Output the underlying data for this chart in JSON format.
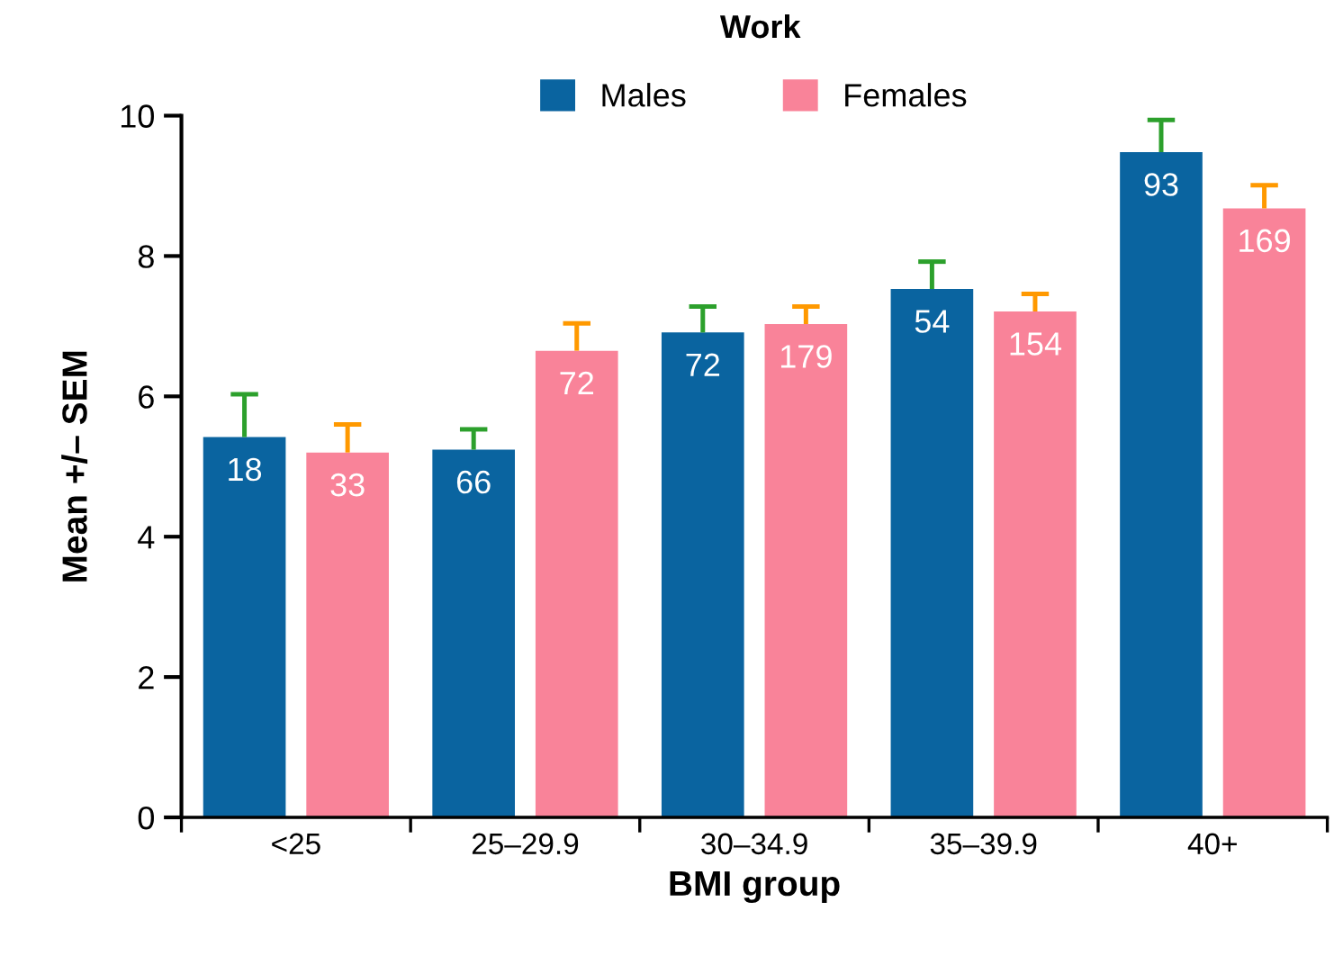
{
  "chart_data": {
    "type": "bar",
    "title": "Work",
    "xlabel": "BMI group",
    "ylabel": "Mean +/– SEM",
    "categories": [
      "<25",
      "25–29.9",
      "30–34.9",
      "35–39.9",
      "40+"
    ],
    "series": [
      {
        "name": "Males",
        "color": "#0a64a0",
        "values": [
          5.42,
          5.24,
          6.91,
          7.53,
          9.48
        ],
        "errors": [
          [
            5.42,
            6.03
          ],
          [
            5.24,
            5.53
          ],
          [
            6.91,
            7.28
          ],
          [
            7.53,
            7.92
          ],
          [
            9.48,
            9.94
          ]
        ]
      },
      {
        "name": "Females",
        "color": "#f98399",
        "values": [
          5.2,
          6.65,
          7.03,
          7.21,
          8.68
        ],
        "errors": [
          [
            5.2,
            5.6
          ],
          [
            6.65,
            7.04
          ],
          [
            7.03,
            7.28
          ],
          [
            7.21,
            7.46
          ],
          [
            8.68,
            9.01
          ]
        ]
      }
    ],
    "annotations": [
      "18",
      "66",
      "72",
      "54",
      "93",
      "33",
      "72",
      "179",
      "154",
      "169"
    ],
    "ylim": [
      0,
      10
    ],
    "yticks": [
      0,
      2,
      4,
      6,
      8,
      10
    ],
    "grid": false,
    "legend": "top"
  }
}
